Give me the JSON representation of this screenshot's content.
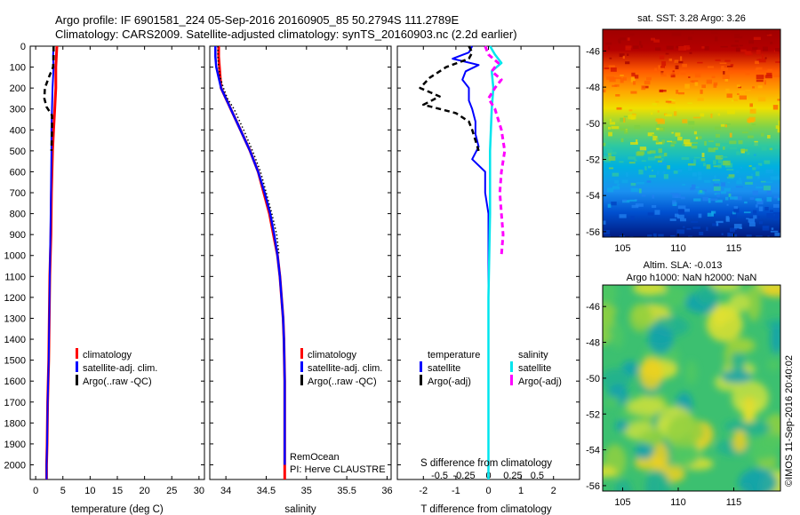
{
  "header": {
    "line1": "Argo profile: IF 6901581_224 05-Sep-2016 20160905_85 50.2794S 111.2789E",
    "line2": "Climatology: CARS2009. Satellite-adjusted climatology: synTS_20160903.nc (2.2d earlier)"
  },
  "side_stamp": "©IMOS 11-Sep-2016 20:40:02",
  "colors": {
    "climatology": "#ff0000",
    "satellite": "#0000ff",
    "argo": "#000000",
    "sat_salinity": "#00e5ee",
    "argo_adj_salinity": "#ff00ff"
  },
  "chart_data": [
    {
      "type": "line",
      "name": "temperature-profile",
      "xlabel": "temperature (deg C)",
      "ylabel": "",
      "xlim": [
        -1,
        31
      ],
      "ylim": [
        2070,
        0
      ],
      "xticks": [
        0,
        5,
        10,
        15,
        20,
        25,
        30
      ],
      "yticks": [
        0,
        100,
        200,
        300,
        400,
        500,
        600,
        700,
        800,
        900,
        1000,
        1100,
        1200,
        1300,
        1400,
        1500,
        1600,
        1700,
        1800,
        1900,
        2000
      ],
      "legend": {
        "placement": "lower-center",
        "entries": [
          "climatology",
          "satellite-adj. clim.",
          "Argo(..raw -QC)"
        ]
      },
      "series": [
        {
          "name": "climatology",
          "depth": [
            0,
            50,
            100,
            200,
            300,
            400,
            500,
            700,
            900,
            1100,
            1300,
            1500,
            1700,
            1900,
            2000,
            2070
          ],
          "values": [
            3.9,
            3.8,
            3.7,
            3.7,
            3.5,
            3.3,
            3.1,
            2.9,
            2.8,
            2.6,
            2.5,
            2.4,
            2.2,
            2.1,
            2.0,
            2.0
          ]
        },
        {
          "name": "satellite-adj. clim.",
          "depth": [
            0,
            50,
            100,
            200,
            300,
            400,
            500,
            700,
            900,
            1100,
            1300,
            1500,
            1700,
            1900,
            2000,
            2070
          ],
          "values": [
            3.3,
            3.2,
            3.3,
            3.1,
            3.0,
            2.9,
            2.9,
            2.8,
            2.7,
            2.6,
            2.5,
            2.4,
            2.2,
            2.1,
            2.0,
            2.0
          ]
        },
        {
          "name": "Argo(..raw -QC)",
          "depth": [
            0,
            50,
            100,
            150,
            200,
            250,
            290,
            330,
            400,
            500
          ],
          "values": [
            3.3,
            3.3,
            3.2,
            2.4,
            1.7,
            1.6,
            2.0,
            3.0,
            3.0,
            2.9
          ]
        }
      ]
    },
    {
      "type": "line",
      "name": "salinity-profile",
      "xlabel": "salinity",
      "ylabel": "",
      "xlim": [
        33.8,
        36.05
      ],
      "ylim": [
        2070,
        0
      ],
      "xticks": [
        34,
        34.5,
        35,
        35.5,
        36
      ],
      "legend": {
        "placement": "lower-center",
        "entries": [
          "climatology",
          "satellite-adj. clim.",
          "Argo(..raw -QC)"
        ]
      },
      "annotations": [
        "RemOcean",
        "PI: Herve CLAUSTRE"
      ],
      "series": [
        {
          "name": "climatology",
          "depth": [
            0,
            50,
            100,
            200,
            300,
            400,
            500,
            600,
            700,
            800,
            900,
            1000,
            1100,
            1200,
            1300,
            1400,
            1600,
            1800,
            2000,
            2070
          ],
          "values": [
            33.91,
            33.91,
            33.92,
            33.94,
            34.06,
            34.18,
            34.3,
            34.4,
            34.47,
            34.54,
            34.59,
            34.64,
            34.67,
            34.69,
            34.71,
            34.72,
            34.73,
            34.73,
            34.73,
            34.73
          ]
        },
        {
          "name": "satellite-adj. clim.",
          "depth": [
            0,
            50,
            100,
            200,
            300,
            400,
            500,
            600,
            700,
            800,
            900,
            1000,
            1100,
            1200,
            1300,
            1400,
            1600,
            1800,
            2000
          ],
          "values": [
            33.87,
            33.87,
            33.88,
            33.94,
            34.06,
            34.18,
            34.3,
            34.4,
            34.48,
            34.55,
            34.6,
            34.64,
            34.67,
            34.69,
            34.71,
            34.72,
            34.73,
            34.73,
            34.73
          ]
        },
        {
          "name": "Argo(..raw -QC)",
          "depth": [
            0,
            50,
            100,
            150,
            200,
            250,
            300,
            400,
            500,
            600,
            700,
            800,
            900,
            1000
          ],
          "values": [
            33.9,
            33.9,
            33.91,
            33.93,
            33.97,
            34.02,
            34.1,
            34.22,
            34.33,
            34.43,
            34.5,
            34.57,
            34.63,
            34.66
          ]
        }
      ]
    },
    {
      "type": "line",
      "name": "difference-profile",
      "xlabel": "T difference from climatology",
      "secondary_xlabel": "S difference from climatology",
      "xlim": [
        -2.8,
        2.8
      ],
      "xticks": [
        -2,
        -1,
        0,
        1,
        2
      ],
      "secondary_xticks": [
        "-0.5",
        "-0.25",
        "0",
        "0.25",
        "0.5"
      ],
      "legend": {
        "placement": "lower-center",
        "columns": [
          {
            "heading": "temperature",
            "entries": [
              "satellite",
              "Argo(-adj)"
            ]
          },
          {
            "heading": "salinity",
            "entries": [
              "satellite",
              "Argo(-adj)"
            ]
          }
        ]
      },
      "series": [
        {
          "name": "temperature satellite",
          "depth": [
            0,
            30,
            60,
            90,
            120,
            160,
            200,
            260,
            300,
            360,
            420,
            480,
            540,
            600,
            700,
            800,
            1000,
            1500,
            2000,
            2070
          ],
          "values": [
            -0.5,
            -0.6,
            -1.1,
            -0.3,
            -0.7,
            -0.8,
            -0.6,
            -0.6,
            -0.5,
            -0.4,
            -0.4,
            -0.3,
            -0.5,
            -0.1,
            -0.1,
            0.0,
            0.0,
            0.0,
            0.0,
            0.0
          ]
        },
        {
          "name": "temperature Argo(-adj)",
          "depth": [
            0,
            30,
            60,
            100,
            150,
            200,
            240,
            280,
            320,
            360,
            400,
            450,
            500
          ],
          "values": [
            -0.6,
            -0.5,
            -0.6,
            -1.3,
            -1.8,
            -2.1,
            -1.5,
            -2.0,
            -1.0,
            -0.6,
            -0.5,
            -0.4,
            -0.3
          ]
        },
        {
          "name": "salinity satellite",
          "depth": [
            0,
            40,
            80,
            120,
            200,
            300,
            500,
            800,
            1200,
            1600,
            2000,
            2070
          ],
          "values": [
            0.05,
            0.2,
            0.4,
            0.1,
            0.15,
            0.1,
            0.05,
            0.05,
            0.0,
            0.0,
            0.0,
            0.0
          ]
        },
        {
          "name": "salinity Argo(-adj)",
          "depth": [
            0,
            40,
            80,
            120,
            160,
            200,
            250,
            300,
            400,
            500,
            600,
            700,
            800,
            900,
            1000
          ],
          "values": [
            -0.1,
            0.0,
            0.3,
            0.1,
            0.4,
            0.2,
            0.0,
            0.2,
            0.4,
            0.5,
            0.4,
            0.35,
            0.4,
            0.45,
            0.4
          ]
        }
      ]
    },
    {
      "type": "heatmap",
      "name": "sst-map",
      "title": "sat. SST: 3.28 Argo: 3.26",
      "xlim": [
        103.2,
        119.2
      ],
      "ylim": [
        -56.3,
        -44.8
      ],
      "xticks": [
        105,
        110,
        115
      ],
      "yticks": [
        -46,
        -48,
        -50,
        -52,
        -54,
        -56
      ]
    },
    {
      "type": "heatmap",
      "name": "sla-map",
      "title": "Altim. SLA: -0.013",
      "subtitle": "Argo h1000: NaN h2000: NaN",
      "xlim": [
        103.2,
        119.2
      ],
      "ylim": [
        -56.3,
        -44.8
      ],
      "xticks": [
        105,
        110,
        115
      ],
      "yticks": [
        -46,
        -48,
        -50,
        -52,
        -54,
        -56
      ]
    }
  ]
}
